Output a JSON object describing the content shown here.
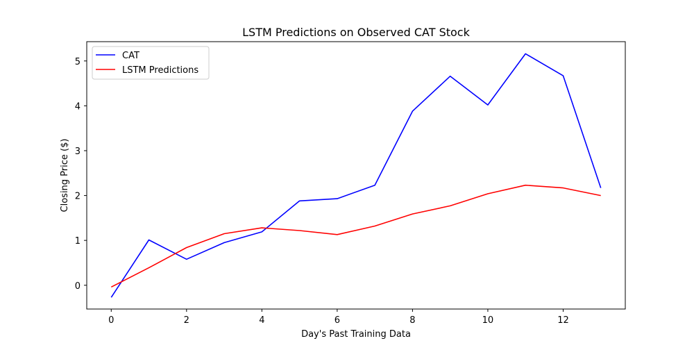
{
  "chart_data": {
    "type": "line",
    "title": "LSTM Predictions on Observed CAT Stock",
    "xlabel": "Day's Past Training Data",
    "ylabel": "Closing Price ($)",
    "x": [
      0,
      1,
      2,
      3,
      4,
      5,
      6,
      7,
      8,
      9,
      10,
      11,
      12,
      13
    ],
    "xlim": [
      -0.65,
      13.65
    ],
    "ylim": [
      -0.53,
      5.43
    ],
    "xticks": [
      0,
      2,
      4,
      6,
      8,
      10,
      12
    ],
    "yticks": [
      0,
      1,
      2,
      3,
      4,
      5
    ],
    "grid": false,
    "legend_position": "top-left",
    "series": [
      {
        "name": "CAT",
        "color": "#0000ff",
        "values": [
          -0.27,
          1.01,
          0.58,
          0.95,
          1.19,
          1.88,
          1.93,
          2.23,
          3.88,
          4.66,
          4.02,
          5.16,
          4.67,
          2.17
        ]
      },
      {
        "name": "LSTM Predictions",
        "color": "#ff0000",
        "values": [
          -0.04,
          0.39,
          0.84,
          1.15,
          1.28,
          1.22,
          1.13,
          1.32,
          1.59,
          1.77,
          2.04,
          2.23,
          2.17,
          2.0
        ]
      }
    ]
  }
}
